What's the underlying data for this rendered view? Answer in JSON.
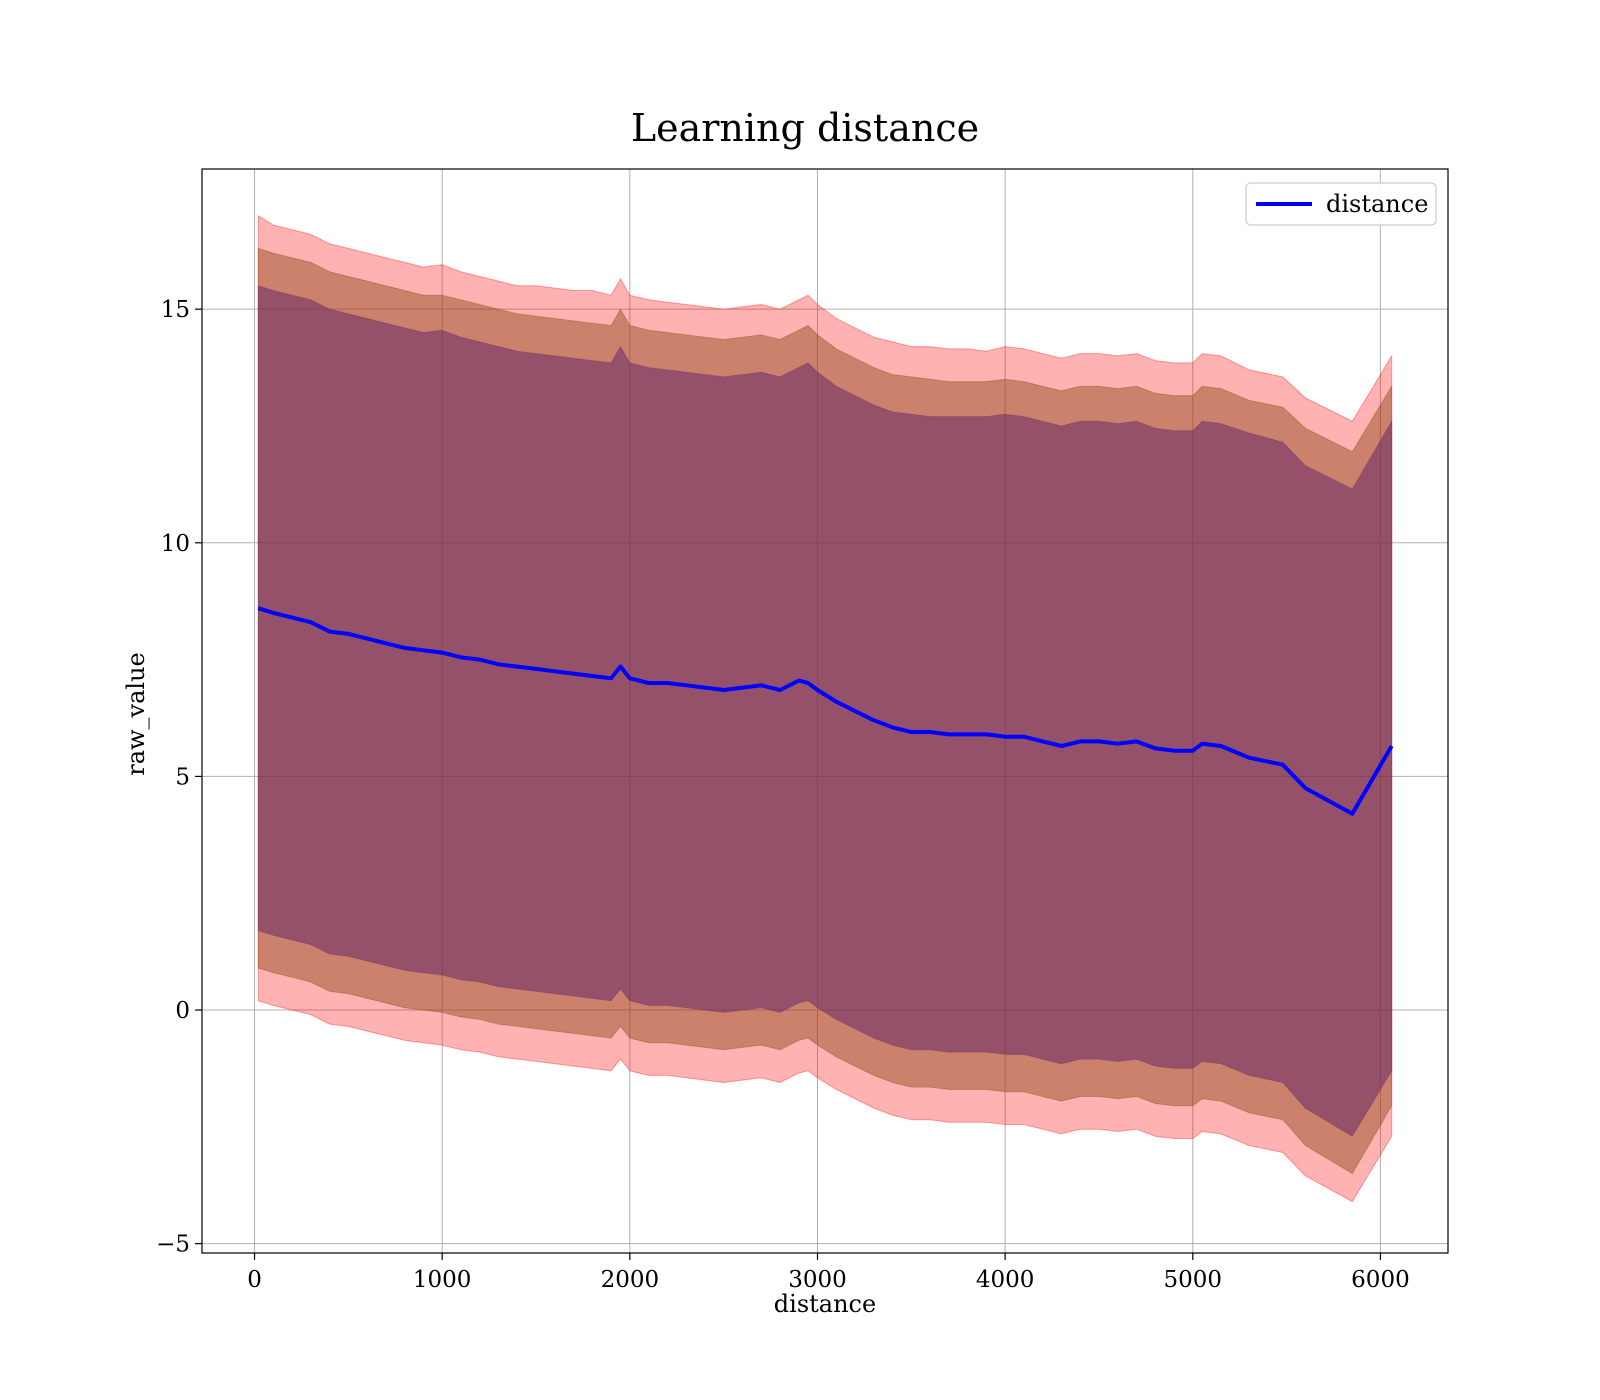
{
  "chart_data": {
    "type": "line",
    "title": "Learning distance",
    "xlabel": "distance",
    "ylabel": "raw_value",
    "xlim": [
      -280,
      6360
    ],
    "ylim": [
      -5.2,
      18.0
    ],
    "xticks": [
      0,
      1000,
      2000,
      3000,
      4000,
      5000,
      6000
    ],
    "yticks": [
      -5,
      0,
      5,
      10,
      15
    ],
    "ytick_labels": [
      "−5",
      "0",
      "5",
      "10",
      "15"
    ],
    "grid": true,
    "legend": {
      "position": "top-right",
      "entries": [
        "distance"
      ]
    },
    "colors": {
      "line": "#0000ff",
      "band_outer": "#ff0000",
      "band_middle": "#8b4513",
      "band_inner": "#6a2a6a"
    },
    "x": [
      20,
      100,
      200,
      300,
      400,
      500,
      600,
      700,
      800,
      900,
      1000,
      1100,
      1200,
      1300,
      1400,
      1500,
      1600,
      1700,
      1800,
      1900,
      1950,
      2000,
      2100,
      2200,
      2300,
      2400,
      2500,
      2600,
      2700,
      2800,
      2900,
      2950,
      3000,
      3100,
      3200,
      3300,
      3400,
      3500,
      3600,
      3700,
      3800,
      3900,
      4000,
      4100,
      4200,
      4300,
      4400,
      4500,
      4600,
      4700,
      4800,
      4900,
      5000,
      5050,
      5150,
      5300,
      5480,
      5600,
      5850,
      6060
    ],
    "series": [
      {
        "name": "distance",
        "values": [
          8.6,
          8.5,
          8.4,
          8.3,
          8.1,
          8.05,
          7.95,
          7.85,
          7.75,
          7.7,
          7.65,
          7.55,
          7.5,
          7.4,
          7.35,
          7.3,
          7.25,
          7.2,
          7.15,
          7.1,
          7.35,
          7.1,
          7.0,
          7.0,
          6.95,
          6.9,
          6.85,
          6.9,
          6.95,
          6.85,
          7.05,
          7.0,
          6.85,
          6.6,
          6.4,
          6.2,
          6.05,
          5.95,
          5.95,
          5.9,
          5.9,
          5.9,
          5.85,
          5.85,
          5.75,
          5.65,
          5.75,
          5.75,
          5.7,
          5.75,
          5.6,
          5.55,
          5.55,
          5.7,
          5.65,
          5.4,
          5.25,
          4.75,
          4.2,
          5.65
        ]
      }
    ],
    "bands": [
      {
        "name": "outer",
        "upper": [
          17.0,
          16.8,
          16.7,
          16.6,
          16.4,
          16.3,
          16.2,
          16.1,
          16.0,
          15.9,
          15.95,
          15.8,
          15.7,
          15.6,
          15.5,
          15.5,
          15.45,
          15.4,
          15.4,
          15.3,
          15.65,
          15.3,
          15.2,
          15.15,
          15.1,
          15.05,
          15.0,
          15.05,
          15.1,
          15.0,
          15.2,
          15.3,
          15.1,
          14.8,
          14.6,
          14.4,
          14.3,
          14.2,
          14.2,
          14.15,
          14.15,
          14.1,
          14.2,
          14.15,
          14.05,
          13.95,
          14.05,
          14.05,
          14.0,
          14.05,
          13.9,
          13.85,
          13.85,
          14.05,
          14.0,
          13.7,
          13.55,
          13.1,
          12.6,
          14.0
        ],
        "lower": [
          0.2,
          0.1,
          0.0,
          -0.1,
          -0.3,
          -0.35,
          -0.45,
          -0.55,
          -0.65,
          -0.7,
          -0.75,
          -0.85,
          -0.9,
          -1.0,
          -1.05,
          -1.1,
          -1.15,
          -1.2,
          -1.25,
          -1.3,
          -1.05,
          -1.3,
          -1.4,
          -1.4,
          -1.45,
          -1.5,
          -1.55,
          -1.5,
          -1.45,
          -1.55,
          -1.35,
          -1.3,
          -1.45,
          -1.7,
          -1.9,
          -2.1,
          -2.25,
          -2.35,
          -2.35,
          -2.4,
          -2.4,
          -2.4,
          -2.45,
          -2.45,
          -2.55,
          -2.65,
          -2.55,
          -2.55,
          -2.6,
          -2.55,
          -2.7,
          -2.75,
          -2.75,
          -2.6,
          -2.65,
          -2.9,
          -3.05,
          -3.55,
          -4.1,
          -2.7
        ]
      },
      {
        "name": "middle",
        "upper": [
          16.3,
          16.2,
          16.1,
          16.0,
          15.8,
          15.7,
          15.6,
          15.5,
          15.4,
          15.3,
          15.3,
          15.2,
          15.1,
          15.0,
          14.9,
          14.85,
          14.8,
          14.75,
          14.7,
          14.65,
          15.0,
          14.65,
          14.55,
          14.5,
          14.45,
          14.4,
          14.35,
          14.4,
          14.45,
          14.35,
          14.55,
          14.65,
          14.45,
          14.15,
          13.95,
          13.75,
          13.6,
          13.55,
          13.5,
          13.45,
          13.45,
          13.45,
          13.5,
          13.45,
          13.35,
          13.25,
          13.35,
          13.35,
          13.3,
          13.35,
          13.2,
          13.15,
          13.15,
          13.35,
          13.3,
          13.05,
          12.9,
          12.45,
          11.95,
          13.35
        ],
        "lower": [
          0.9,
          0.8,
          0.7,
          0.6,
          0.4,
          0.35,
          0.25,
          0.15,
          0.05,
          0.0,
          -0.05,
          -0.15,
          -0.2,
          -0.3,
          -0.35,
          -0.4,
          -0.45,
          -0.5,
          -0.55,
          -0.6,
          -0.35,
          -0.6,
          -0.7,
          -0.7,
          -0.75,
          -0.8,
          -0.85,
          -0.8,
          -0.75,
          -0.85,
          -0.65,
          -0.6,
          -0.75,
          -1.0,
          -1.2,
          -1.4,
          -1.55,
          -1.65,
          -1.65,
          -1.7,
          -1.7,
          -1.7,
          -1.75,
          -1.75,
          -1.85,
          -1.95,
          -1.85,
          -1.85,
          -1.9,
          -1.85,
          -2.0,
          -2.05,
          -2.05,
          -1.9,
          -1.95,
          -2.2,
          -2.35,
          -2.9,
          -3.5,
          -2.05
        ]
      },
      {
        "name": "inner",
        "upper": [
          15.5,
          15.4,
          15.3,
          15.2,
          15.0,
          14.9,
          14.8,
          14.7,
          14.6,
          14.5,
          14.55,
          14.4,
          14.3,
          14.2,
          14.1,
          14.05,
          14.0,
          13.95,
          13.9,
          13.85,
          14.2,
          13.85,
          13.75,
          13.7,
          13.65,
          13.6,
          13.55,
          13.6,
          13.65,
          13.55,
          13.75,
          13.85,
          13.65,
          13.35,
          13.15,
          12.95,
          12.8,
          12.75,
          12.7,
          12.7,
          12.7,
          12.7,
          12.75,
          12.7,
          12.6,
          12.5,
          12.6,
          12.6,
          12.55,
          12.6,
          12.45,
          12.4,
          12.4,
          12.6,
          12.55,
          12.35,
          12.15,
          11.65,
          11.15,
          12.6
        ],
        "lower": [
          1.7,
          1.6,
          1.5,
          1.4,
          1.2,
          1.15,
          1.05,
          0.95,
          0.85,
          0.8,
          0.75,
          0.65,
          0.6,
          0.5,
          0.45,
          0.4,
          0.35,
          0.3,
          0.25,
          0.2,
          0.45,
          0.2,
          0.1,
          0.1,
          0.05,
          0.0,
          -0.05,
          0.0,
          0.05,
          -0.05,
          0.15,
          0.2,
          0.05,
          -0.2,
          -0.4,
          -0.6,
          -0.75,
          -0.85,
          -0.85,
          -0.9,
          -0.9,
          -0.9,
          -0.95,
          -0.95,
          -1.05,
          -1.15,
          -1.05,
          -1.05,
          -1.1,
          -1.05,
          -1.2,
          -1.25,
          -1.25,
          -1.1,
          -1.15,
          -1.4,
          -1.55,
          -2.1,
          -2.7,
          -1.3
        ]
      }
    ]
  }
}
